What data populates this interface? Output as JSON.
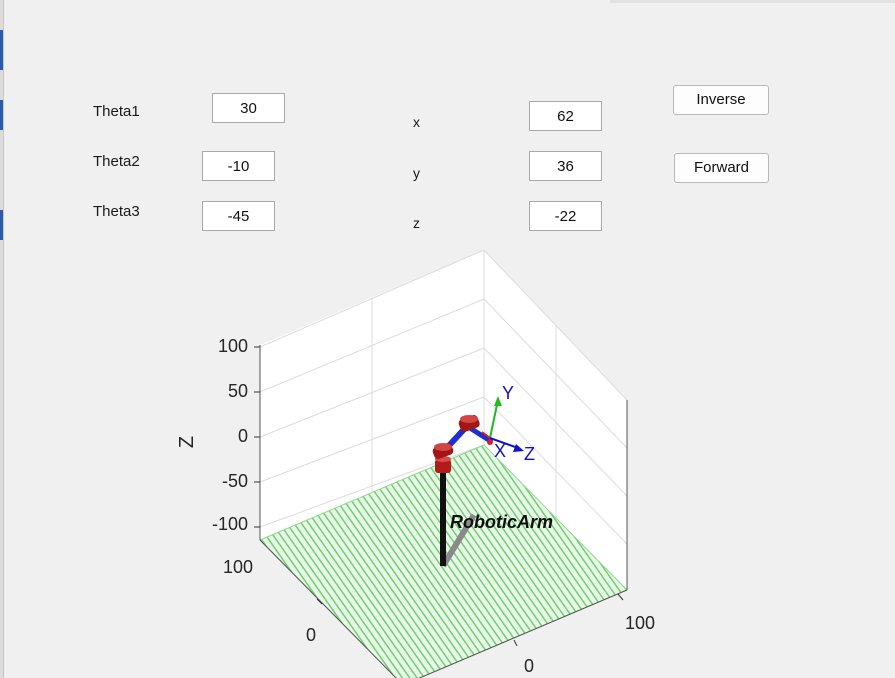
{
  "joints": [
    {
      "label": "Theta1",
      "value": "30"
    },
    {
      "label": "Theta2",
      "value": "-10"
    },
    {
      "label": "Theta3",
      "value": "-45"
    }
  ],
  "position": [
    {
      "label": "x",
      "value": "62"
    },
    {
      "label": "y",
      "value": "36"
    },
    {
      "label": "z",
      "value": "-22"
    }
  ],
  "buttons": {
    "inverse": "Inverse",
    "forward": "Forward"
  },
  "plot": {
    "z_axis_label": "Z",
    "z_ticks": [
      "100",
      "50",
      "0",
      "-50",
      "-100"
    ],
    "x_ticks": [
      "100",
      "0"
    ],
    "y_ticks": [
      "100",
      "0"
    ],
    "robot_name": "RoboticArm",
    "frame_labels": {
      "x": "X",
      "y": "Y",
      "z": "Z"
    },
    "colors": {
      "floor": "#7ed67e",
      "link_base": "#111111",
      "link_arm": "#1f2fd0",
      "joint": "#b31b1b",
      "frame_x": "#d22222",
      "frame_y": "#1fbb1f",
      "frame_z": "#1010d0"
    }
  }
}
